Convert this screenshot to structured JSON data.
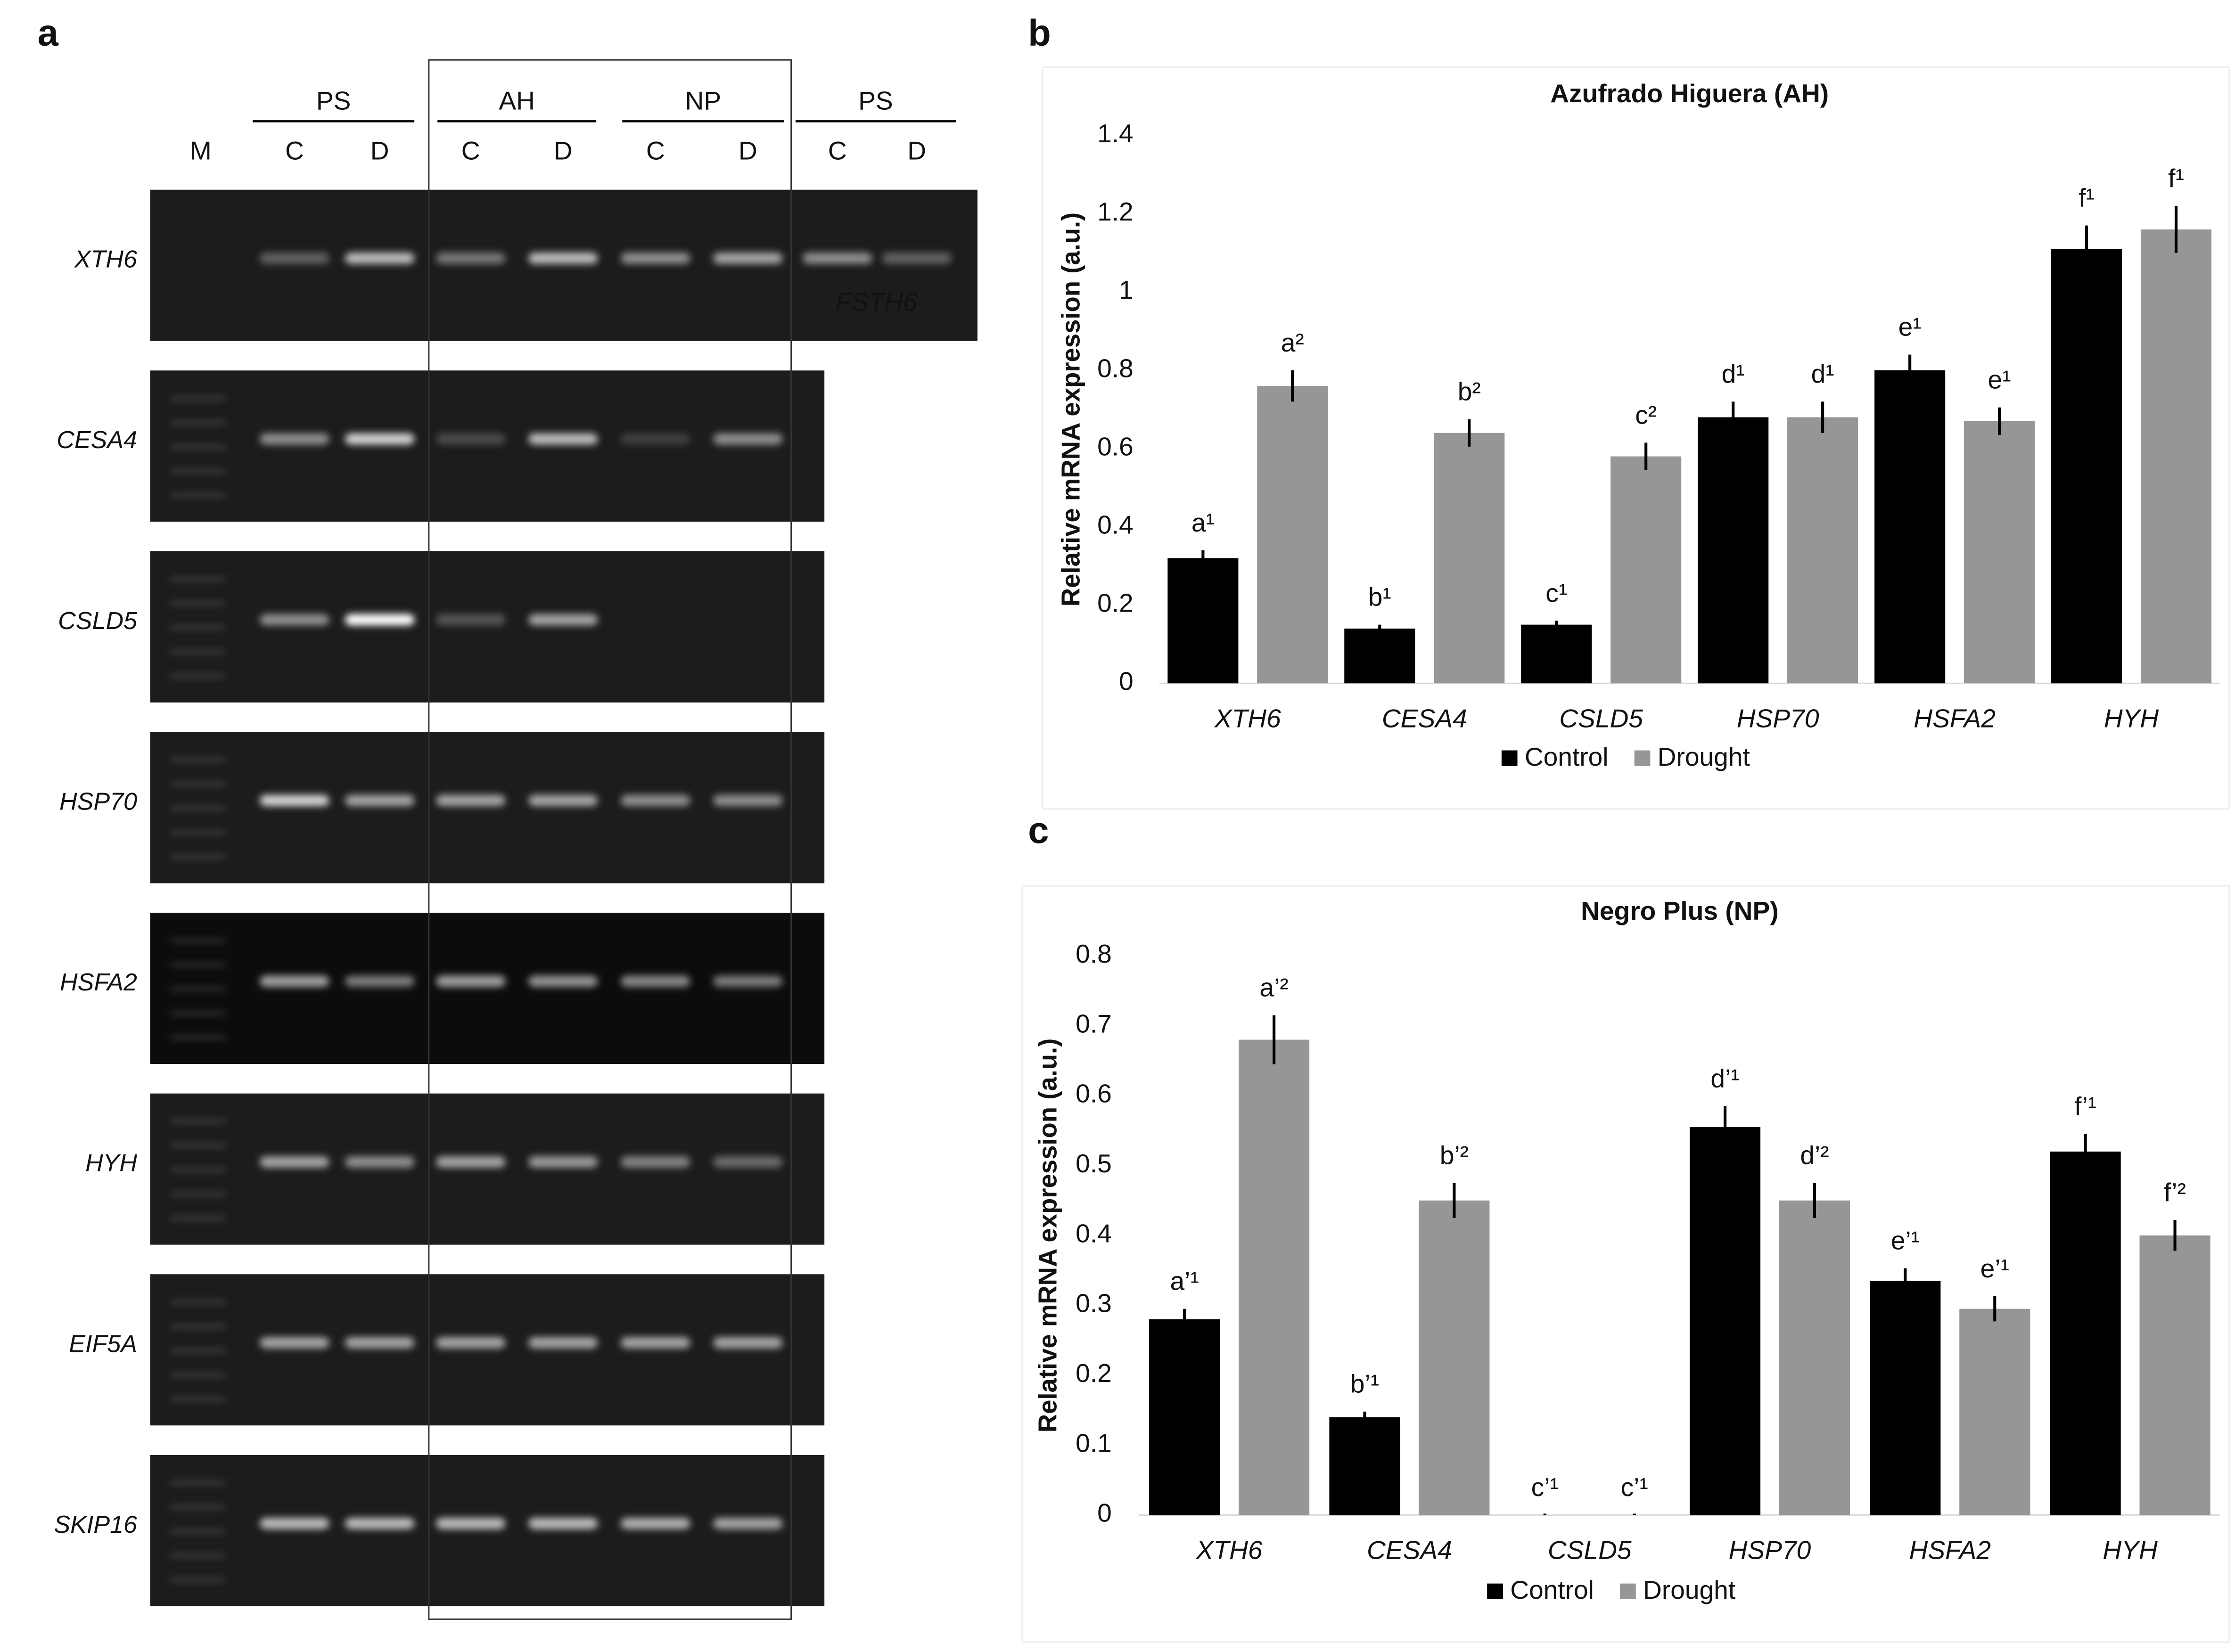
{
  "panel_labels": [
    "a",
    "b",
    "c"
  ],
  "gel": {
    "groups": [
      "PS",
      "AH",
      "NP",
      "PS"
    ],
    "lanes": [
      "M",
      "C",
      "D",
      "C",
      "D",
      "C",
      "D",
      "C",
      "D"
    ],
    "genes": [
      "XTH6",
      "CESA4",
      "CSLD5",
      "HSP70",
      "HSFA2",
      "HYH",
      "EIF5A",
      "SKIP16"
    ],
    "inset_label": "FSTH6"
  },
  "chart_data": [
    {
      "type": "bar",
      "title": "Azufrado Higuera (AH)",
      "y_label": "Relative mRNA expression (a.u.)",
      "categories": [
        "XTH6",
        "CESA4",
        "CSLD5",
        "HSP70",
        "HSFA2",
        "HYH"
      ],
      "series": [
        {
          "name": "Control",
          "color": "#000000",
          "values": [
            0.32,
            0.14,
            0.15,
            0.68,
            0.8,
            1.11
          ],
          "errors": [
            0.02,
            0.01,
            0.01,
            0.04,
            0.04,
            0.06
          ],
          "annotations": [
            "a¹",
            "b¹",
            "c¹",
            "d¹",
            "e¹",
            "f¹"
          ]
        },
        {
          "name": "Drought",
          "color": "#969696",
          "values": [
            0.76,
            0.64,
            0.58,
            0.68,
            0.67,
            1.16
          ],
          "errors": [
            0.04,
            0.035,
            0.035,
            0.04,
            0.035,
            0.06
          ],
          "annotations": [
            "a²",
            "b²",
            "c²",
            "d¹",
            "e¹",
            "f¹"
          ]
        }
      ],
      "ylim": [
        0,
        1.4
      ],
      "yticks": [
        0,
        0.2,
        0.4,
        0.6,
        0.8,
        1,
        1.2,
        1.4
      ],
      "grid": false,
      "legend": "bottom"
    },
    {
      "type": "bar",
      "title": "Negro Plus (NP)",
      "y_label": "Relative mRNA expression (a.u.)",
      "categories": [
        "XTH6",
        "CESA4",
        "CSLD5",
        "HSP70",
        "HSFA2",
        "HYH"
      ],
      "series": [
        {
          "name": "Control",
          "color": "#000000",
          "values": [
            0.28,
            0.14,
            0,
            0.555,
            0.335,
            0.52
          ],
          "errors": [
            0.015,
            0.008,
            0,
            0.03,
            0.018,
            0.025
          ],
          "annotations": [
            "a’¹",
            "b’¹",
            "c’¹",
            "d’¹",
            "e’¹",
            "f’¹"
          ]
        },
        {
          "name": "Drought",
          "color": "#969696",
          "values": [
            0.68,
            0.45,
            0,
            0.45,
            0.295,
            0.4
          ],
          "errors": [
            0.035,
            0.025,
            0,
            0.025,
            0.018,
            0.022
          ],
          "annotations": [
            "a’²",
            "b’²",
            "c’¹",
            "d’²",
            "e’¹",
            "f’²"
          ]
        }
      ],
      "ylim": [
        0,
        0.8
      ],
      "yticks": [
        0,
        0.1,
        0.2,
        0.3,
        0.4,
        0.5,
        0.6,
        0.7,
        0.8
      ],
      "grid": false,
      "legend": "bottom"
    }
  ]
}
